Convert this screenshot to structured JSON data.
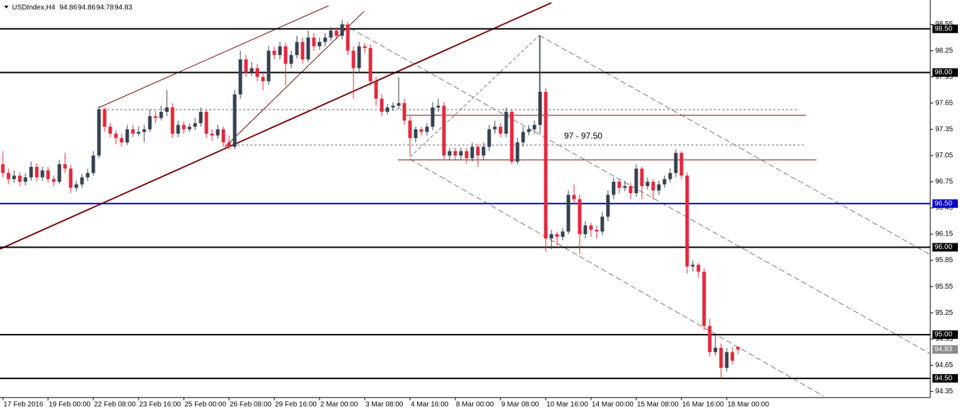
{
  "chart_data": {
    "type": "candlestick",
    "title": "USDIndex,H4",
    "annotation": "97 - 97.50",
    "up_color": "#34414f",
    "down_color": "#e4283c",
    "ylim": [
      94.28,
      98.83
    ],
    "yticks": [
      98.55,
      98.25,
      97.95,
      97.65,
      97.35,
      97.05,
      96.75,
      96.45,
      96.15,
      95.85,
      95.55,
      95.25,
      94.95,
      94.65,
      94.35
    ],
    "levels": [
      {
        "value": 98.5,
        "label": "98.50",
        "color": "#000000"
      },
      {
        "value": 98.0,
        "label": "98.00",
        "color": "#000000"
      },
      {
        "value": 96.5,
        "label": "96.50",
        "color": "#0000c8"
      },
      {
        "value": 96.0,
        "label": "96.00",
        "color": "#000000"
      },
      {
        "value": 95.0,
        "label": "95.00",
        "color": "#000000"
      },
      {
        "value": 94.5,
        "label": "94.50",
        "color": "#000000"
      }
    ],
    "categories": [
      "17 Feb 2016",
      null,
      null,
      null,
      null,
      null,
      null,
      null,
      "19 Feb 00:00",
      null,
      null,
      null,
      null,
      null,
      null,
      null,
      "22 Feb 08:00",
      null,
      null,
      null,
      null,
      null,
      null,
      null,
      "23 Feb 16:00",
      null,
      null,
      null,
      null,
      null,
      null,
      null,
      "25 Feb 00:00",
      null,
      null,
      null,
      null,
      null,
      null,
      null,
      "26 Feb 08:00",
      null,
      null,
      null,
      null,
      null,
      null,
      null,
      "29 Feb 16:00",
      null,
      null,
      null,
      null,
      null,
      null,
      null,
      "2 Mar 00:00",
      null,
      null,
      null,
      null,
      null,
      null,
      null,
      "3 Mar 08:00",
      null,
      null,
      null,
      null,
      null,
      null,
      null,
      "4 Mar 16:00",
      null,
      null,
      null,
      null,
      null,
      null,
      null,
      "8 Mar 00:00",
      null,
      null,
      null,
      null,
      null,
      null,
      null,
      "9 Mar 08:00",
      null,
      null,
      null,
      null,
      null,
      null,
      null,
      "10 Mar 16:00",
      null,
      null,
      null,
      null,
      null,
      null,
      null,
      "14 Mar 00:00",
      null,
      null,
      null,
      null,
      null,
      null,
      null,
      "15 Mar 08:00",
      null,
      null,
      null,
      null,
      null,
      null,
      null,
      "16 Mar 16:00",
      null,
      null,
      null,
      null,
      null,
      null,
      null,
      "18 Mar 00:00",
      null,
      null
    ],
    "ohlc": [
      [
        96.95,
        97.1,
        96.8,
        96.85
      ],
      [
        96.85,
        96.9,
        96.72,
        96.78
      ],
      [
        96.78,
        96.88,
        96.74,
        96.82
      ],
      [
        96.82,
        96.86,
        96.7,
        96.75
      ],
      [
        96.75,
        96.85,
        96.71,
        96.8
      ],
      [
        96.8,
        96.98,
        96.76,
        96.92
      ],
      [
        96.92,
        96.96,
        96.75,
        96.8
      ],
      [
        96.8,
        96.92,
        96.76,
        96.88
      ],
      [
        96.88,
        96.92,
        96.74,
        96.78
      ],
      [
        96.78,
        96.82,
        96.7,
        96.75
      ],
      [
        96.75,
        97.0,
        96.72,
        96.95
      ],
      [
        96.95,
        97.08,
        96.85,
        96.9
      ],
      [
        96.9,
        96.94,
        96.62,
        96.68
      ],
      [
        96.68,
        96.76,
        96.64,
        96.72
      ],
      [
        96.72,
        96.84,
        96.68,
        96.8
      ],
      [
        96.8,
        96.9,
        96.76,
        96.85
      ],
      [
        96.85,
        97.1,
        96.82,
        97.05
      ],
      [
        97.05,
        97.62,
        97.02,
        97.58
      ],
      [
        97.58,
        97.6,
        97.32,
        97.38
      ],
      [
        97.38,
        97.42,
        97.26,
        97.3
      ],
      [
        97.3,
        97.34,
        97.18,
        97.25
      ],
      [
        97.25,
        97.3,
        97.15,
        97.2
      ],
      [
        97.2,
        97.4,
        97.17,
        97.35
      ],
      [
        97.35,
        97.4,
        97.26,
        97.3
      ],
      [
        97.3,
        97.38,
        97.27,
        97.32
      ],
      [
        97.32,
        97.4,
        97.2,
        97.35
      ],
      [
        97.35,
        97.58,
        97.32,
        97.5
      ],
      [
        97.5,
        97.56,
        97.42,
        97.48
      ],
      [
        97.48,
        97.62,
        97.45,
        97.55
      ],
      [
        97.55,
        97.8,
        97.5,
        97.6
      ],
      [
        97.6,
        97.65,
        97.25,
        97.3
      ],
      [
        97.3,
        97.45,
        97.26,
        97.4
      ],
      [
        97.4,
        97.44,
        97.3,
        97.35
      ],
      [
        97.35,
        97.42,
        97.32,
        97.38
      ],
      [
        97.38,
        97.48,
        97.34,
        97.42
      ],
      [
        97.42,
        97.6,
        97.38,
        97.55
      ],
      [
        97.55,
        97.58,
        97.25,
        97.3
      ],
      [
        97.3,
        97.35,
        97.22,
        97.28
      ],
      [
        97.28,
        97.4,
        97.24,
        97.35
      ],
      [
        97.35,
        97.38,
        97.15,
        97.2
      ],
      [
        97.2,
        97.28,
        97.12,
        97.15
      ],
      [
        97.15,
        97.8,
        97.12,
        97.75
      ],
      [
        97.75,
        98.25,
        97.7,
        98.15
      ],
      [
        98.15,
        98.2,
        97.95,
        98.0
      ],
      [
        98.0,
        98.12,
        97.96,
        98.05
      ],
      [
        98.05,
        98.1,
        97.9,
        97.95
      ],
      [
        97.95,
        98.0,
        97.8,
        97.9
      ],
      [
        97.9,
        98.3,
        97.86,
        98.25
      ],
      [
        98.25,
        98.3,
        98.15,
        98.2
      ],
      [
        98.2,
        98.35,
        98.15,
        98.3
      ],
      [
        98.3,
        98.34,
        97.85,
        98.1
      ],
      [
        98.1,
        98.25,
        98.05,
        98.2
      ],
      [
        98.2,
        98.42,
        98.16,
        98.35
      ],
      [
        98.35,
        98.4,
        98.1,
        98.15
      ],
      [
        98.15,
        98.48,
        98.12,
        98.4
      ],
      [
        98.4,
        98.45,
        98.25,
        98.3
      ],
      [
        98.3,
        98.4,
        98.26,
        98.35
      ],
      [
        98.35,
        98.45,
        98.3,
        98.4
      ],
      [
        98.4,
        98.52,
        98.36,
        98.48
      ],
      [
        98.48,
        98.52,
        98.38,
        98.42
      ],
      [
        98.42,
        98.6,
        98.38,
        98.55
      ],
      [
        98.55,
        98.58,
        98.2,
        98.25
      ],
      [
        98.25,
        98.3,
        97.7,
        98.05
      ],
      [
        98.05,
        98.35,
        98.0,
        98.3
      ],
      [
        98.3,
        98.34,
        98.22,
        98.28
      ],
      [
        98.28,
        98.32,
        97.85,
        97.9
      ],
      [
        97.9,
        97.95,
        97.62,
        97.7
      ],
      [
        97.7,
        97.75,
        97.5,
        97.55
      ],
      [
        97.55,
        97.64,
        97.52,
        97.6
      ],
      [
        97.6,
        97.66,
        97.56,
        97.62
      ],
      [
        97.62,
        97.95,
        97.58,
        97.65
      ],
      [
        97.65,
        97.7,
        97.4,
        97.45
      ],
      [
        97.45,
        97.5,
        97.05,
        97.25
      ],
      [
        97.25,
        97.38,
        97.2,
        97.35
      ],
      [
        97.35,
        97.38,
        97.28,
        97.32
      ],
      [
        97.32,
        97.42,
        97.28,
        97.38
      ],
      [
        97.38,
        97.66,
        97.34,
        97.6
      ],
      [
        97.6,
        97.7,
        97.55,
        97.62
      ],
      [
        97.62,
        97.66,
        97.0,
        97.05
      ],
      [
        97.05,
        97.14,
        97.0,
        97.1
      ],
      [
        97.1,
        97.14,
        97.0,
        97.05
      ],
      [
        97.05,
        97.14,
        97.0,
        97.1
      ],
      [
        97.1,
        97.14,
        96.96,
        97.02
      ],
      [
        97.02,
        97.2,
        96.98,
        97.15
      ],
      [
        97.15,
        97.18,
        96.92,
        97.05
      ],
      [
        97.05,
        97.2,
        97.0,
        97.15
      ],
      [
        97.15,
        97.4,
        97.1,
        97.35
      ],
      [
        97.35,
        97.45,
        97.3,
        97.38
      ],
      [
        97.38,
        97.42,
        97.26,
        97.3
      ],
      [
        97.3,
        97.6,
        97.26,
        97.55
      ],
      [
        97.55,
        97.58,
        96.95,
        96.98
      ],
      [
        96.98,
        97.25,
        96.95,
        97.2
      ],
      [
        97.2,
        97.38,
        97.15,
        97.32
      ],
      [
        97.32,
        97.4,
        97.28,
        97.35
      ],
      [
        97.35,
        97.45,
        97.3,
        97.4
      ],
      [
        97.4,
        98.42,
        97.3,
        97.78
      ],
      [
        97.78,
        97.82,
        95.95,
        96.1
      ],
      [
        96.1,
        96.2,
        95.98,
        96.15
      ],
      [
        96.15,
        96.18,
        96.02,
        96.12
      ],
      [
        96.12,
        96.22,
        96.08,
        96.18
      ],
      [
        96.18,
        96.65,
        96.15,
        96.6
      ],
      [
        96.6,
        96.72,
        96.5,
        96.55
      ],
      [
        96.55,
        96.6,
        95.92,
        96.15
      ],
      [
        96.15,
        96.3,
        96.1,
        96.25
      ],
      [
        96.25,
        96.28,
        96.12,
        96.2
      ],
      [
        96.2,
        96.25,
        96.1,
        96.18
      ],
      [
        96.18,
        96.4,
        96.14,
        96.35
      ],
      [
        96.35,
        96.65,
        96.3,
        96.6
      ],
      [
        96.6,
        96.8,
        96.55,
        96.75
      ],
      [
        96.75,
        96.78,
        96.62,
        96.68
      ],
      [
        96.68,
        96.76,
        96.64,
        96.7
      ],
      [
        96.7,
        96.74,
        96.55,
        96.62
      ],
      [
        96.62,
        96.95,
        96.58,
        96.9
      ],
      [
        96.9,
        96.92,
        96.55,
        96.7
      ],
      [
        96.7,
        96.8,
        96.66,
        96.75
      ],
      [
        96.75,
        96.78,
        96.55,
        96.65
      ],
      [
        96.65,
        96.76,
        96.6,
        96.72
      ],
      [
        96.72,
        96.82,
        96.68,
        96.78
      ],
      [
        96.78,
        96.9,
        96.74,
        96.85
      ],
      [
        96.85,
        97.12,
        96.8,
        97.08
      ],
      [
        97.08,
        97.1,
        96.78,
        96.82
      ],
      [
        96.82,
        96.86,
        95.7,
        95.78
      ],
      [
        95.78,
        95.85,
        95.72,
        95.8
      ],
      [
        95.8,
        95.82,
        95.65,
        95.72
      ],
      [
        95.72,
        95.76,
        95.05,
        95.1
      ],
      [
        95.1,
        95.18,
        94.75,
        94.8
      ],
      [
        94.8,
        95.0,
        94.76,
        94.85
      ],
      [
        94.85,
        94.9,
        94.5,
        94.62
      ],
      [
        94.62,
        94.85,
        94.58,
        94.8
      ],
      [
        94.8,
        94.86,
        94.66,
        94.7
      ],
      [
        94.86,
        94.86,
        94.78,
        94.83
      ]
    ]
  }
}
